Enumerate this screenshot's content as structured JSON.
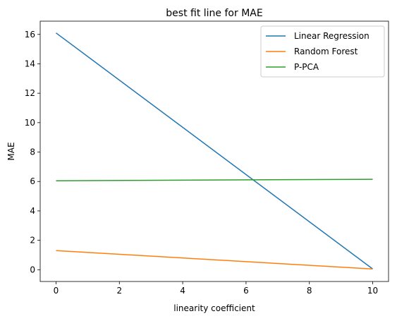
{
  "chart_data": {
    "type": "line",
    "title": "best fit line for MAE",
    "xlabel": "linearity coefficient",
    "ylabel": "MAE",
    "xlim": [
      -0.5,
      10.5
    ],
    "ylim": [
      -0.8,
      16.9
    ],
    "xticks": [
      0,
      2,
      4,
      6,
      8,
      10
    ],
    "yticks": [
      0,
      2,
      4,
      6,
      8,
      10,
      12,
      14,
      16
    ],
    "grid": false,
    "legend_position": "top-right",
    "series": [
      {
        "name": "Linear Regression",
        "color": "#1f77b4",
        "x": [
          0,
          10
        ],
        "y": [
          16.1,
          0.05
        ]
      },
      {
        "name": "Random Forest",
        "color": "#ff7f0e",
        "x": [
          0,
          10
        ],
        "y": [
          1.3,
          0.05
        ]
      },
      {
        "name": "P-PCA",
        "color": "#2ca02c",
        "x": [
          0,
          10
        ],
        "y": [
          6.05,
          6.15
        ]
      }
    ]
  }
}
